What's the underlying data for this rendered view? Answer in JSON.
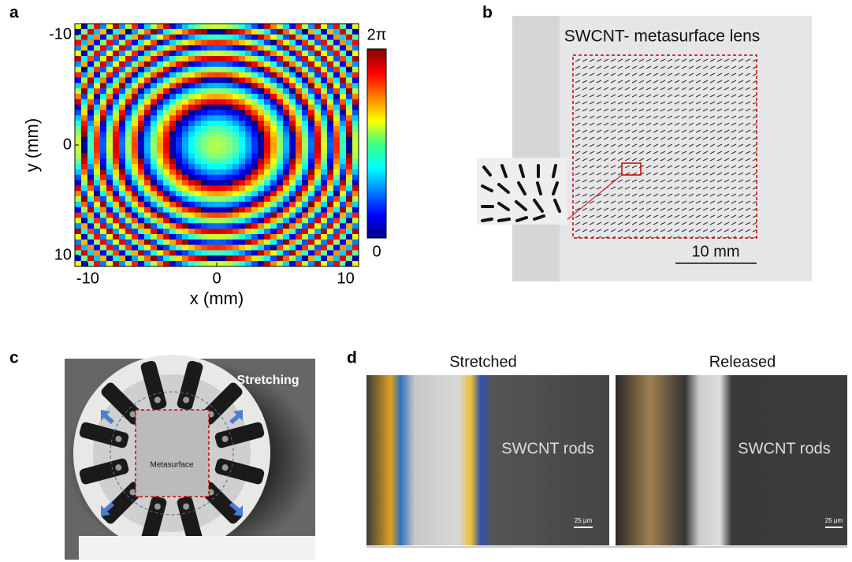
{
  "panels": {
    "a": {
      "label": "a",
      "xlabel": "x (mm)",
      "ylabel": "y (mm)",
      "xticks": [
        -10,
        0,
        10
      ],
      "yticks": [
        -10,
        0,
        10
      ],
      "xlim": [
        -11,
        11
      ],
      "ylim": [
        -11,
        11
      ],
      "colorbar_top": "2π",
      "colorbar_bottom": "0"
    },
    "b": {
      "label": "b",
      "title": "SWCNT- metasurface lens",
      "scalebar": "10 mm"
    },
    "c": {
      "label": "c",
      "annotation": "Stretching",
      "sample": "Metasurface"
    },
    "d": {
      "label": "d",
      "left_title": "Stretched",
      "right_title": "Released",
      "left_note": "SWCNT rods",
      "right_note": "SWCNT rods",
      "left_scale": "25 µm",
      "right_scale": "25 µm"
    }
  }
}
